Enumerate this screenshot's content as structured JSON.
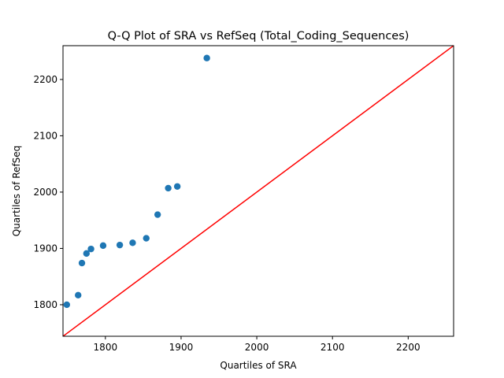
{
  "chart_data": {
    "type": "scatter",
    "title": "Q-Q Plot of SRA vs RefSeq (Total_Coding_Sequences)",
    "xlabel": "Quartiles of SRA",
    "ylabel": "Quartiles of RefSeq",
    "xlim": [
      1744,
      2260
    ],
    "ylim": [
      1744,
      2260
    ],
    "xticks": [
      1800,
      1900,
      2000,
      2100,
      2200
    ],
    "yticks": [
      1800,
      1900,
      2000,
      2100,
      2200
    ],
    "grid": false,
    "reference_line": {
      "from": [
        1744,
        1744
      ],
      "to": [
        2260,
        2260
      ],
      "color": "#ff0000"
    },
    "series": [
      {
        "color": "#1f77b4",
        "points": [
          [
            1749,
            1800
          ],
          [
            1764,
            1817
          ],
          [
            1769,
            1874
          ],
          [
            1775,
            1891
          ],
          [
            1781,
            1899
          ],
          [
            1797,
            1905
          ],
          [
            1819,
            1906
          ],
          [
            1836,
            1910
          ],
          [
            1854,
            1918
          ],
          [
            1869,
            1960
          ],
          [
            1883,
            2007
          ],
          [
            1895,
            2010
          ],
          [
            1934,
            2238
          ]
        ]
      }
    ]
  }
}
